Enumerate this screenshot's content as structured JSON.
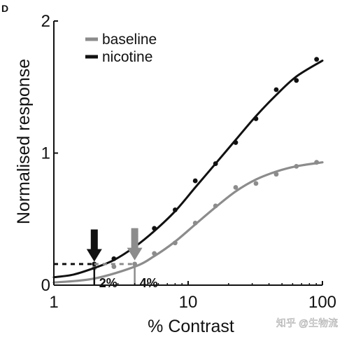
{
  "chart_data": {
    "type": "line",
    "panel_label": "D",
    "title": "",
    "xlabel": "% Contrast",
    "ylabel": "Normalised response",
    "x_scale": "log",
    "xlim": [
      1,
      100
    ],
    "ylim": [
      0,
      2
    ],
    "x_ticks": [
      {
        "value": 1,
        "label": "1"
      },
      {
        "value": 10,
        "label": "10"
      },
      {
        "value": 100,
        "label": "100"
      }
    ],
    "y_ticks": [
      {
        "value": 0,
        "label": "0"
      },
      {
        "value": 1,
        "label": "1"
      },
      {
        "value": 2,
        "label": "2"
      }
    ],
    "legend_position": "top-left",
    "grid": false,
    "series": [
      {
        "name": "baseline",
        "color": "#8c8c8c",
        "points": [
          {
            "x": 2.0,
            "y": 0.13
          },
          {
            "x": 2.8,
            "y": 0.14
          },
          {
            "x": 4.0,
            "y": 0.16
          },
          {
            "x": 5.6,
            "y": 0.24
          },
          {
            "x": 8.0,
            "y": 0.32
          },
          {
            "x": 11.3,
            "y": 0.47
          },
          {
            "x": 16.0,
            "y": 0.6
          },
          {
            "x": 22.6,
            "y": 0.74
          },
          {
            "x": 32.0,
            "y": 0.77
          },
          {
            "x": 45.3,
            "y": 0.84
          },
          {
            "x": 64.0,
            "y": 0.9
          },
          {
            "x": 90.5,
            "y": 0.93
          }
        ],
        "fit": [
          {
            "x": 1.0,
            "y": 0.02
          },
          {
            "x": 2.0,
            "y": 0.05
          },
          {
            "x": 4.0,
            "y": 0.14
          },
          {
            "x": 5.6,
            "y": 0.22
          },
          {
            "x": 8.0,
            "y": 0.33
          },
          {
            "x": 11.3,
            "y": 0.46
          },
          {
            "x": 16.0,
            "y": 0.59
          },
          {
            "x": 22.6,
            "y": 0.71
          },
          {
            "x": 32.0,
            "y": 0.8
          },
          {
            "x": 45.3,
            "y": 0.86
          },
          {
            "x": 64.0,
            "y": 0.9
          },
          {
            "x": 100.0,
            "y": 0.93
          }
        ]
      },
      {
        "name": "nicotine",
        "color": "#111111",
        "points": [
          {
            "x": 2.0,
            "y": 0.16
          },
          {
            "x": 2.8,
            "y": 0.2
          },
          {
            "x": 4.0,
            "y": 0.29
          },
          {
            "x": 5.6,
            "y": 0.43
          },
          {
            "x": 8.0,
            "y": 0.57
          },
          {
            "x": 11.3,
            "y": 0.79
          },
          {
            "x": 16.0,
            "y": 0.92
          },
          {
            "x": 22.6,
            "y": 1.08
          },
          {
            "x": 32.0,
            "y": 1.26
          },
          {
            "x": 45.3,
            "y": 1.48
          },
          {
            "x": 64.0,
            "y": 1.55
          },
          {
            "x": 90.5,
            "y": 1.71
          }
        ],
        "fit": [
          {
            "x": 1.0,
            "y": 0.06
          },
          {
            "x": 1.4,
            "y": 0.08
          },
          {
            "x": 2.0,
            "y": 0.13
          },
          {
            "x": 2.8,
            "y": 0.19
          },
          {
            "x": 4.0,
            "y": 0.29
          },
          {
            "x": 5.6,
            "y": 0.41
          },
          {
            "x": 8.0,
            "y": 0.56
          },
          {
            "x": 11.3,
            "y": 0.74
          },
          {
            "x": 16.0,
            "y": 0.92
          },
          {
            "x": 22.6,
            "y": 1.1
          },
          {
            "x": 32.0,
            "y": 1.28
          },
          {
            "x": 45.3,
            "y": 1.44
          },
          {
            "x": 64.0,
            "y": 1.58
          },
          {
            "x": 100.0,
            "y": 1.7
          }
        ]
      }
    ],
    "threshold_level": 0.16,
    "annotations": [
      {
        "text": "2%",
        "x": 2.0,
        "series": "nicotine",
        "color": "#111111"
      },
      {
        "text": "4%",
        "x": 4.0,
        "series": "baseline",
        "color": "#8c8c8c"
      }
    ]
  },
  "watermark": "知乎 @生物流"
}
